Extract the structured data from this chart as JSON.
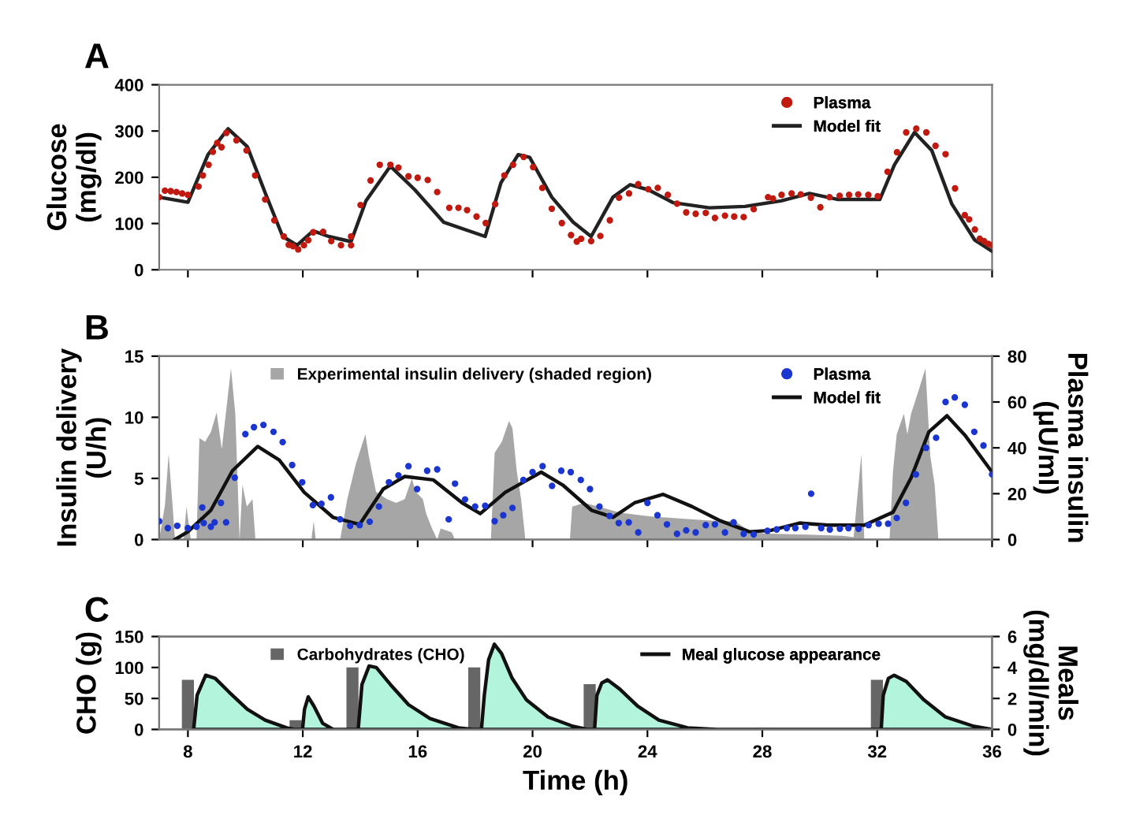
{
  "chart_data": [
    {
      "type": "scatter",
      "title": "A",
      "ylabel": "Glucose\n(mg/dl)",
      "xlim": [
        7,
        36
      ],
      "xticks": [
        8,
        12,
        16,
        20,
        24,
        28,
        32,
        36
      ],
      "ylim": [
        0,
        400
      ],
      "yticks": [
        0,
        100,
        200,
        300,
        400
      ],
      "tick_labels": "y",
      "legend": "top right",
      "series": [
        {
          "name": "Plasma",
          "marker": "circle",
          "color": "#c0190f",
          "x": [
            7.0,
            7.2,
            7.4,
            7.6,
            7.8,
            8.0,
            8.37,
            8.52,
            8.72,
            8.87,
            9.02,
            9.17,
            9.34,
            9.69,
            10.04,
            10.34,
            10.69,
            11.01,
            11.34,
            11.51,
            11.66,
            11.84,
            12.04,
            12.19,
            12.36,
            12.71,
            12.99,
            13.33,
            13.68,
            13.68,
            14.01,
            14.36,
            14.68,
            15.05,
            15.33,
            15.68,
            16.0,
            16.35,
            16.68,
            17.1,
            17.42,
            17.72,
            18.05,
            18.37,
            18.7,
            19.02,
            19.32,
            19.69,
            20.02,
            20.34,
            20.67,
            21.02,
            21.34,
            21.54,
            21.69,
            22.04,
            22.36,
            22.69,
            23.01,
            23.36,
            23.68,
            24.03,
            24.36,
            24.71,
            25.03,
            25.35,
            25.68,
            26.03,
            26.35,
            26.7,
            27.02,
            27.35,
            27.7,
            28.2,
            28.37,
            28.67,
            29.02,
            29.34,
            29.69,
            30.02,
            30.34,
            30.69,
            31.02,
            31.34,
            31.69,
            32.02,
            32.36,
            32.69,
            33.01,
            33.36,
            33.71,
            34.03,
            34.38,
            34.71,
            35.05,
            35.2,
            35.4,
            35.57,
            35.72,
            35.87,
            36.0
          ],
          "values": [
            157,
            171,
            170,
            168,
            165,
            162,
            180,
            204,
            227,
            255,
            274,
            265,
            296,
            280,
            258,
            204,
            152,
            107,
            72,
            54,
            51,
            44,
            53,
            64,
            81,
            82,
            62,
            53,
            53,
            72,
            140,
            193,
            227,
            227,
            221,
            202,
            199,
            194,
            168,
            134,
            134,
            129,
            115,
            101,
            142,
            204,
            227,
            244,
            222,
            177,
            132,
            101,
            75,
            61,
            67,
            62,
            73,
            107,
            156,
            165,
            185,
            174,
            177,
            162,
            143,
            124,
            121,
            123,
            112,
            117,
            115,
            114,
            131,
            157,
            154,
            162,
            165,
            163,
            156,
            135,
            157,
            160,
            162,
            163,
            162,
            159,
            212,
            254,
            297,
            305,
            297,
            268,
            250,
            176,
            118,
            109,
            87,
            67,
            62,
            56,
            53
          ]
        },
        {
          "name": "Model fit",
          "type": "line",
          "color": "#222222",
          "x": [
            7.0,
            8.0,
            8.7,
            9.4,
            10.07,
            10.7,
            11.3,
            11.8,
            12.36,
            12.9,
            13.68,
            14.2,
            15.05,
            15.9,
            16.9,
            18.35,
            18.9,
            19.5,
            19.9,
            20.67,
            21.41,
            22.04,
            22.8,
            23.4,
            24.03,
            24.9,
            26.15,
            27.4,
            28.65,
            29.64,
            30.64,
            32.09,
            32.6,
            33.3,
            33.9,
            34.6,
            35.4,
            36.0
          ],
          "values": [
            157,
            146,
            249,
            305,
            266,
            165,
            72,
            53,
            84,
            72,
            61,
            149,
            224,
            173,
            103,
            72,
            188,
            249,
            243,
            157,
            103,
            72,
            157,
            184,
            173,
            145,
            134,
            137,
            149,
            165,
            152,
            152,
            227,
            297,
            258,
            142,
            64,
            40
          ]
        }
      ]
    },
    {
      "type": "scatter",
      "title": "B",
      "ylabel": "Insulin delivery\n(U/h)",
      "y2label": "Plasma insulin\n(μU/ml)",
      "xlim": [
        7,
        36
      ],
      "xticks": [
        8,
        12,
        16,
        20,
        24,
        28,
        32,
        36
      ],
      "ylim": [
        0,
        15
      ],
      "yticks": [
        0,
        5,
        10,
        15
      ],
      "y2lim": [
        0,
        80
      ],
      "y2ticks": [
        0,
        20,
        40,
        60,
        80
      ],
      "tick_labels": "y",
      "legend": "top right",
      "series": [
        {
          "name": "Experimental insulin delivery (shaded region)",
          "type": "area",
          "color": "#a6a6a6",
          "x": [
            7.0,
            7.2,
            7.33,
            7.45,
            7.55,
            7.85,
            7.95,
            8.1,
            8.3,
            8.4,
            8.6,
            8.8,
            9.0,
            9.18,
            9.35,
            9.5,
            9.65,
            9.8,
            9.9,
            10.05,
            10.25,
            10.35,
            12.3,
            12.38,
            12.45,
            13.3,
            13.55,
            13.85,
            14.18,
            14.3,
            14.55,
            14.93,
            15.25,
            15.55,
            15.8,
            15.93,
            16.18,
            16.3,
            16.5,
            16.68,
            16.8,
            17.18,
            17.3,
            18.55,
            18.68,
            18.93,
            19.18,
            19.3,
            19.45,
            19.6,
            19.75,
            21.3,
            21.38,
            21.8,
            22.3,
            23.05,
            24.05,
            25.3,
            26.55,
            27.05,
            27.55,
            28.05,
            29.55,
            30.8,
            31.18,
            31.3,
            31.45,
            31.55,
            32.43,
            32.55,
            32.68,
            32.93,
            33.05,
            33.18,
            33.43,
            33.68,
            33.85,
            34.0,
            34.13
          ],
          "values": [
            0,
            2.8,
            7.0,
            3.3,
            0,
            0,
            2.7,
            0,
            0,
            8.3,
            8.0,
            8.8,
            10.4,
            7.4,
            10.9,
            14,
            10.3,
            0,
            4.5,
            2.7,
            3.3,
            0,
            0,
            1.5,
            0,
            0,
            3.3,
            6.2,
            8.6,
            6.8,
            3.9,
            3.3,
            3.0,
            3.3,
            5.0,
            3.9,
            3.3,
            2.1,
            0.9,
            0,
            0.9,
            0.6,
            0,
            0,
            7.1,
            8.0,
            9.7,
            9.1,
            5.6,
            3.3,
            0,
            0,
            2.7,
            3.0,
            2.7,
            2.2,
            1.9,
            1.7,
            1.5,
            1.5,
            0.7,
            0.5,
            0.4,
            0.3,
            0.2,
            3.3,
            7.0,
            0,
            0,
            5.6,
            8.6,
            10.3,
            8.6,
            10.3,
            12.1,
            14,
            6.8,
            4.5,
            0
          ]
        },
        {
          "name": "Plasma",
          "marker": "circle",
          "axis": "y2",
          "color": "#1a35d0",
          "x": [
            7.0,
            7.3,
            7.63,
            8.0,
            8.3,
            8.55,
            8.5,
            8.8,
            8.93,
            9.15,
            9.33,
            9.63,
            10.0,
            10.3,
            10.63,
            10.98,
            11.3,
            11.63,
            11.98,
            12.35,
            12.65,
            12.98,
            13.3,
            13.65,
            13.98,
            14.33,
            14.65,
            15.0,
            15.33,
            15.68,
            15.98,
            16.33,
            16.68,
            17.08,
            17.3,
            17.65,
            18.0,
            18.35,
            18.68,
            18.98,
            19.3,
            19.68,
            20.0,
            20.35,
            20.68,
            21.0,
            21.33,
            21.68,
            22.0,
            22.33,
            22.68,
            23.0,
            23.35,
            23.68,
            24.0,
            24.35,
            24.68,
            25.03,
            25.35,
            25.68,
            26.03,
            26.35,
            26.7,
            27.0,
            27.35,
            27.7,
            28.18,
            28.5,
            28.85,
            29.15,
            29.5,
            29.7,
            30.05,
            30.35,
            30.7,
            31.0,
            31.35,
            31.7,
            32.05,
            32.38,
            32.68,
            33.0,
            33.35,
            33.7,
            34.05,
            34.38,
            34.7,
            35.05,
            35.38,
            35.7,
            36.0
          ],
          "values": [
            8,
            5,
            6,
            5,
            5.6,
            7.2,
            14,
            5.6,
            7.5,
            16,
            7.5,
            27,
            46,
            49,
            50,
            47,
            42.5,
            32.5,
            25,
            15,
            15.6,
            18.4,
            8.8,
            6,
            6.3,
            7.8,
            14.4,
            25,
            28,
            32,
            22,
            30,
            30.6,
            8.8,
            24.4,
            17.5,
            14.4,
            14.7,
            8,
            10.6,
            13.8,
            26,
            29.4,
            32,
            23.4,
            30,
            29.4,
            26,
            22,
            14.4,
            10.3,
            7.2,
            7.5,
            3.1,
            16,
            10.6,
            6.6,
            2.5,
            4,
            3.1,
            6.3,
            6.6,
            3.1,
            7.5,
            2.5,
            2.2,
            3.8,
            4.4,
            5,
            5,
            5.6,
            20,
            5,
            4.4,
            4.7,
            5,
            4.7,
            6.3,
            6.9,
            6.9,
            9.4,
            16,
            28.4,
            40,
            44.4,
            60,
            62,
            58.8,
            47,
            41,
            28.4
          ]
        },
        {
          "name": "Model fit",
          "type": "line",
          "axis": "y2",
          "color": "#111111",
          "x": [
            7.55,
            8.0,
            8.8,
            9.55,
            10.43,
            11.18,
            12.05,
            13.05,
            13.98,
            14.8,
            15.55,
            16.55,
            17.55,
            18.18,
            19.05,
            20.3,
            21.05,
            22.05,
            22.8,
            23.55,
            24.55,
            25.55,
            26.55,
            27.55,
            28.3,
            29.3,
            30.3,
            31.55,
            32.55,
            33.18,
            33.8,
            34.43,
            35.05,
            36.0
          ],
          "values": [
            0,
            3.4,
            12.8,
            30,
            40.6,
            34.7,
            20.6,
            9.7,
            6.6,
            22,
            27.5,
            26,
            16,
            11.3,
            20.6,
            29.4,
            23.8,
            12.8,
            9.7,
            16,
            19.7,
            14.4,
            8.1,
            3.4,
            4,
            7.2,
            6.3,
            6.3,
            11.9,
            26.9,
            47,
            54,
            45.6,
            29.4
          ]
        }
      ]
    },
    {
      "type": "bar",
      "title": "C",
      "ylabel": "CHO (g)",
      "y2label": "Meals\n(mg/dl/min)",
      "xlabel": "Time (h)",
      "xlim": [
        7,
        36
      ],
      "xticks": [
        8,
        12,
        16,
        20,
        24,
        28,
        32,
        36
      ],
      "ylim": [
        0,
        150
      ],
      "yticks": [
        0,
        50,
        100,
        150
      ],
      "y2lim": [
        0,
        6
      ],
      "y2ticks": [
        0,
        2,
        4,
        6
      ],
      "legend": "top right",
      "series": [
        {
          "name": "Carbohydrates (CHO)",
          "color": "#666666",
          "x": [
            8.0,
            11.75,
            13.73,
            17.97,
            21.99,
            31.99
          ],
          "values": [
            80,
            15,
            100,
            100,
            73,
            80
          ]
        },
        {
          "name": "Meal glucose appearance",
          "type": "area",
          "line_style": "solid",
          "axis": "y2",
          "color": "#b3f5dc",
          "x": [
            8.2,
            8.32,
            8.62,
            8.95,
            9.44,
            10.07,
            10.69,
            11.44,
            11.7,
            11.99,
            12.06,
            12.19,
            12.39,
            12.69,
            13.06,
            13.93,
            14.06,
            14.31,
            14.56,
            15.05,
            15.68,
            16.43,
            17.42,
            17.92,
            18.22,
            18.32,
            18.47,
            18.67,
            18.92,
            19.29,
            19.79,
            20.54,
            21.41,
            21.9,
            22.16,
            22.24,
            22.41,
            22.61,
            23.04,
            23.66,
            24.4,
            25.4,
            26.4,
            32.14,
            32.21,
            32.39,
            32.59,
            33.01,
            33.63,
            34.38,
            35.37,
            36.0
          ],
          "values": [
            0,
            2.2,
            3.5,
            3.3,
            2.4,
            1.3,
            0.6,
            0.1,
            0,
            0,
            1.3,
            2.1,
            1.5,
            0.4,
            0,
            0,
            2.9,
            4.1,
            4.0,
            2.9,
            1.6,
            0.7,
            0.1,
            0,
            0,
            2.2,
            4.5,
            5.5,
            4.9,
            3.3,
            1.9,
            0.8,
            0.2,
            0,
            0,
            2.2,
            3.0,
            3.2,
            2.6,
            1.5,
            0.6,
            0.1,
            0,
            0,
            2.2,
            3.3,
            3.5,
            3.1,
            1.9,
            0.8,
            0.2,
            0
          ]
        }
      ]
    }
  ]
}
